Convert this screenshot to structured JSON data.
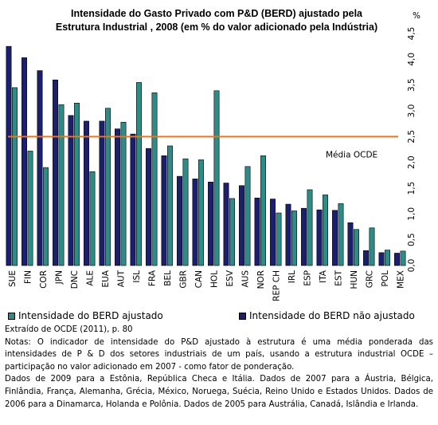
{
  "chart_data": {
    "type": "bar",
    "title_lines": [
      "Intensidade do Gasto Privado com P&D (BERD) ajustado pela",
      "Estrutura Industrial , 2008 (em % do valor adicionado pela Indústria)"
    ],
    "y_unit": "%",
    "ylim": [
      0,
      4.5
    ],
    "yticks": [
      "0,0",
      "0,5",
      "1,0",
      "1,5",
      "2,0",
      "2,5",
      "3,0",
      "3,5",
      "4,0",
      "4,5"
    ],
    "categories": [
      "SUE",
      "FIN",
      "COR",
      "JPN",
      "DNC",
      "ALE",
      "EUA",
      "AUT",
      "ISL",
      "FRA",
      "BEL",
      "GBR",
      "CAN",
      "HOL",
      "ESV",
      "AUS",
      "NOR",
      "REP CH",
      "IRL",
      "ESP",
      "ITA",
      "EST",
      "HUN",
      "GRC",
      "POL",
      "MEX"
    ],
    "series": [
      {
        "name": "Intensidade do BERD ajustado",
        "color": "#2e8b87",
        "values": [
          3.45,
          2.22,
          1.9,
          3.12,
          3.15,
          1.82,
          3.05,
          2.78,
          3.55,
          3.35,
          2.32,
          2.07,
          2.05,
          3.39,
          1.3,
          1.92,
          2.13,
          1.02,
          1.06,
          1.47,
          1.37,
          1.2,
          0.7,
          0.73,
          0.3,
          0.28
        ]
      },
      {
        "name": "Intensidade do BERD não ajustado",
        "color": "#1b1f6e",
        "values": [
          4.25,
          4.03,
          3.78,
          3.6,
          2.91,
          2.8,
          2.8,
          2.65,
          2.55,
          2.27,
          2.13,
          1.73,
          1.68,
          1.62,
          1.6,
          1.55,
          1.31,
          1.29,
          1.19,
          1.11,
          1.08,
          1.07,
          0.83,
          0.29,
          0.25,
          0.24
        ]
      }
    ],
    "reference_line": {
      "label": "Média OCDE",
      "value": 2.5,
      "color": "#e8761e"
    },
    "grid": false,
    "legend_position": "bottom"
  },
  "notes": {
    "source": "Extraído de OCDE (2011), p. 80",
    "note1": "Notas: O indicador de intensidade do P&D ajustado à estrutura é uma média ponderada das intensidades de P & D dos setores industriais de um país, usando a estrutura industrial OCDE – participação no valor adicionado em 2007 - como fator de ponderação.",
    "note2": "Dados de 2009 para a Estônia, República Checa e Itália. Dados de 2007 para a Áustria, Bélgica, Finlândia, França, Alemanha, Grécia, México, Noruega, Suécia, Reino Unido e Estados Unidos. Dados de 2006 para a Dinamarca, Holanda e Polônia. Dados de 2005 para Austrália, Canadá, Islândia e Irlanda."
  }
}
